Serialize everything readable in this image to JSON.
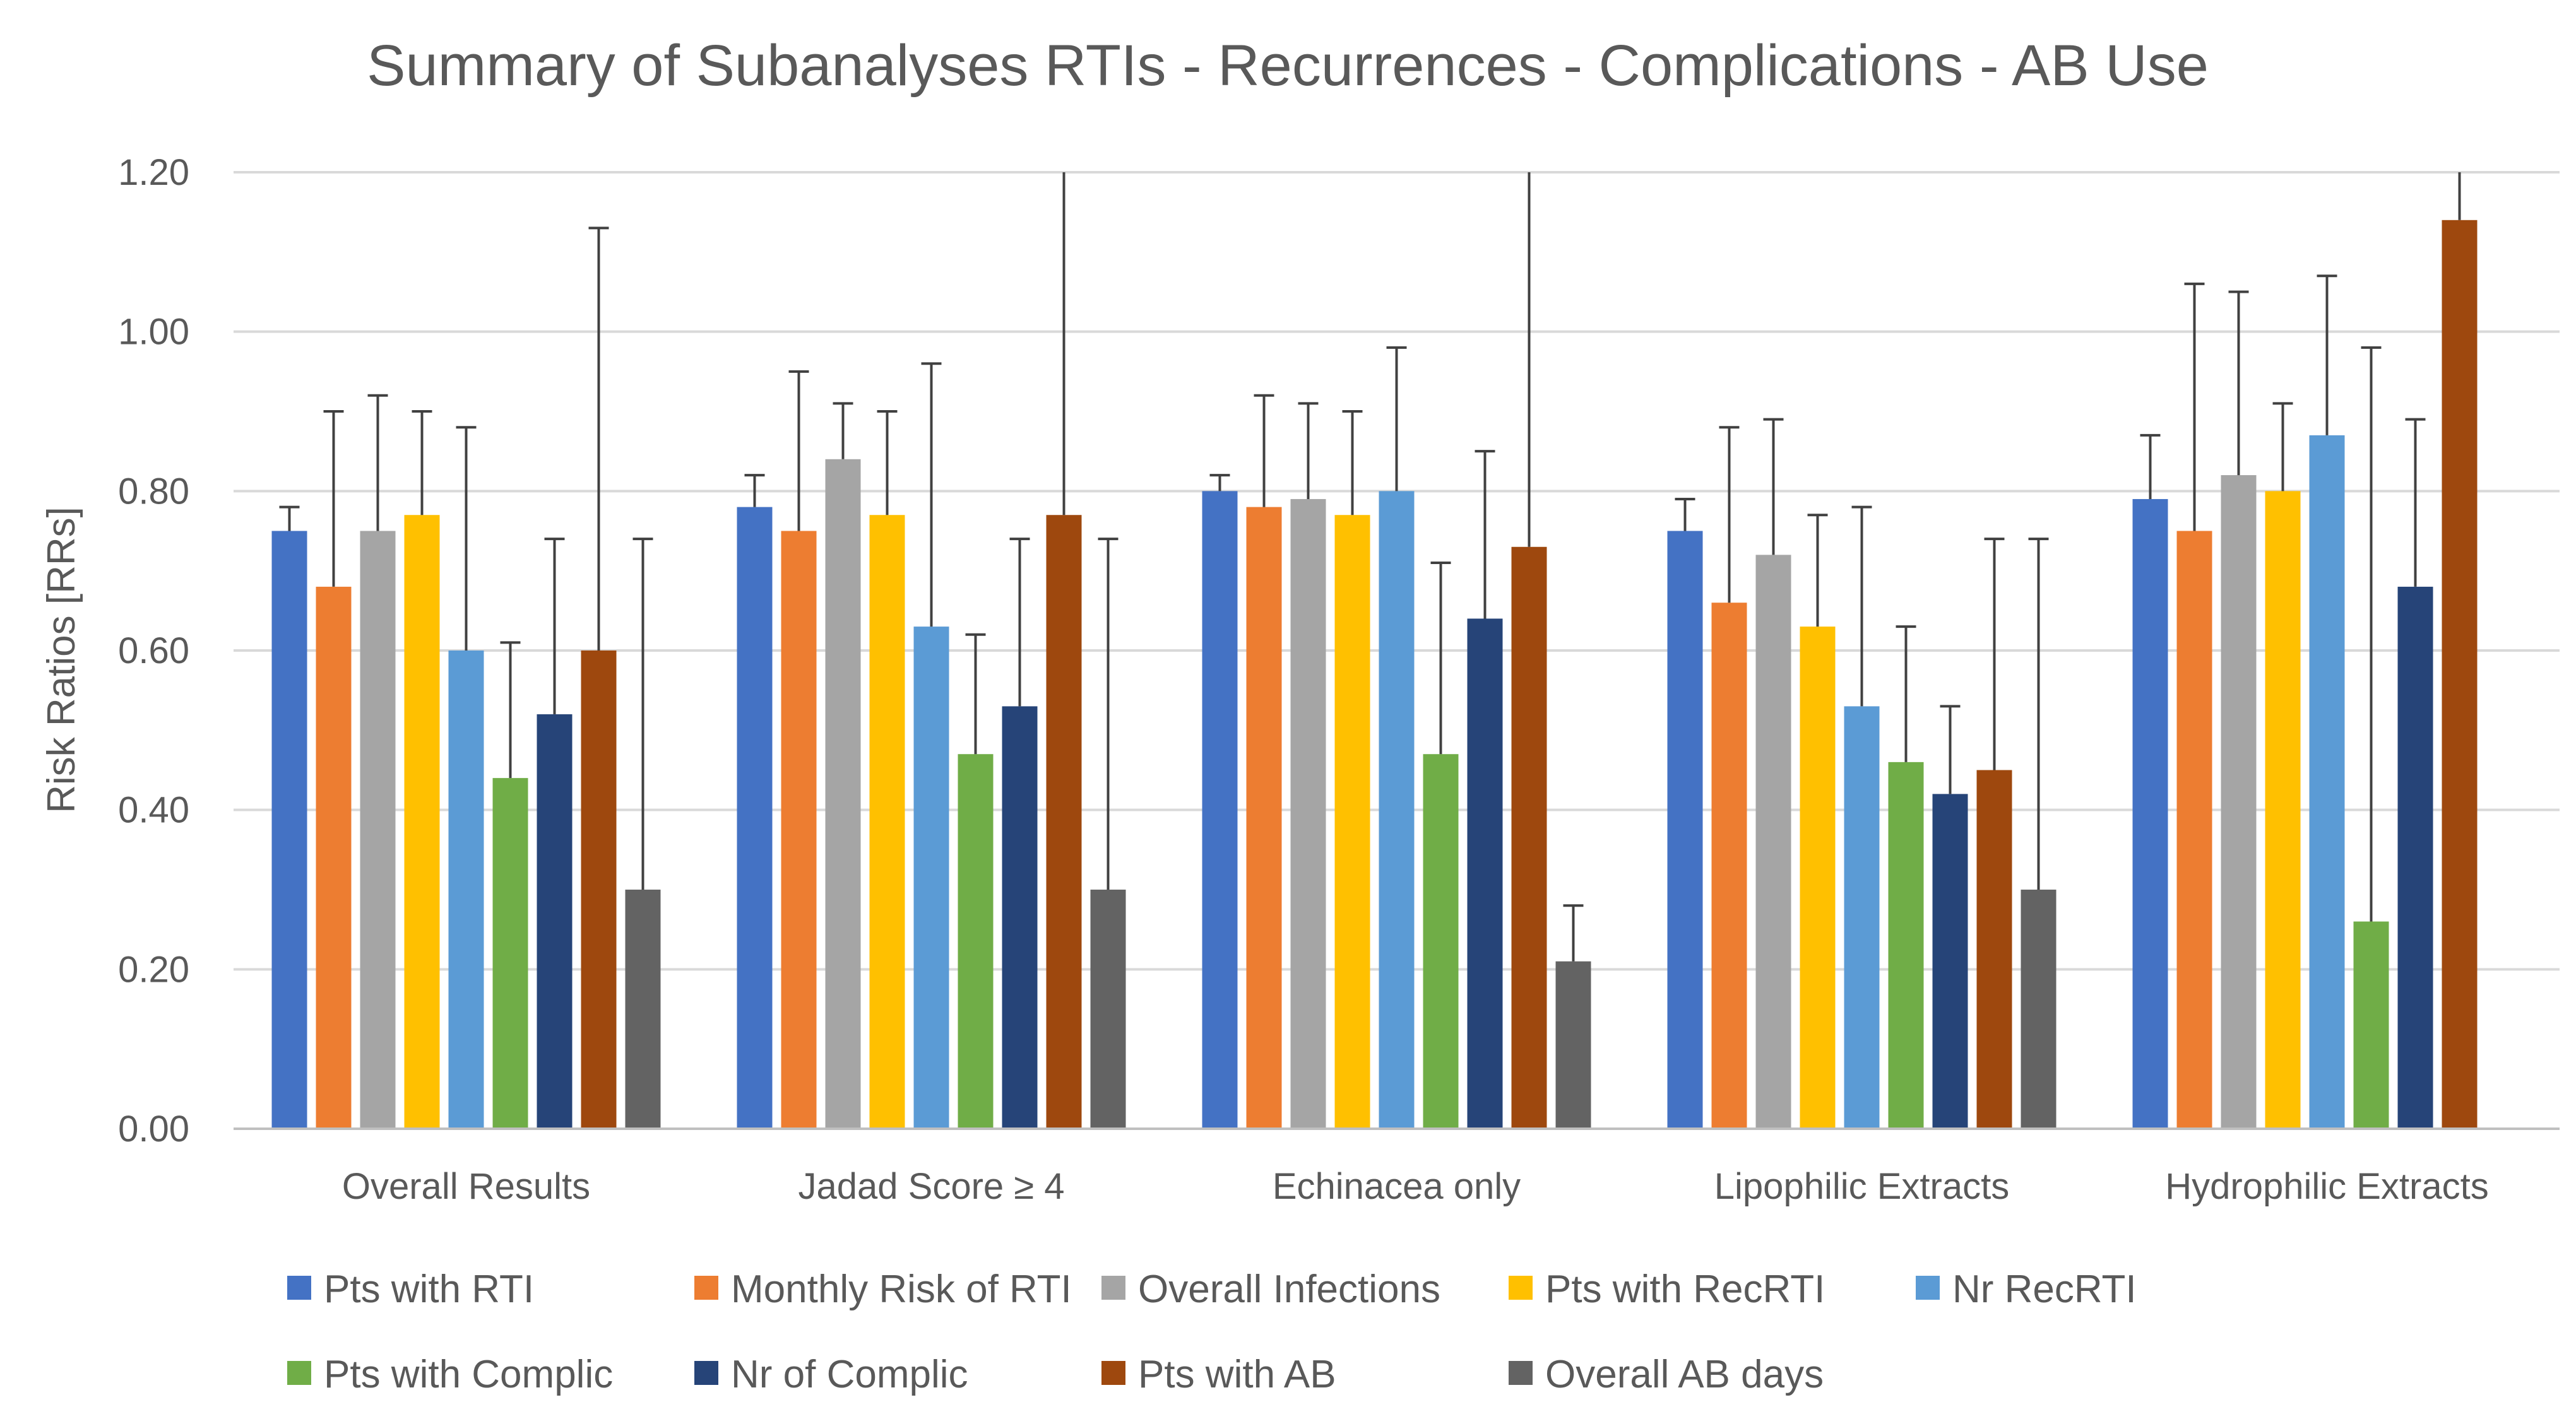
{
  "chart_data": {
    "type": "bar",
    "title": "Summary of Subanalyses RTIs - Recurrences - Complications - AB Use",
    "xlabel": "",
    "ylabel": "Risk Ratios [RRs]",
    "ylim": [
      0,
      1.2
    ],
    "yticks": [
      "0.00",
      "0.20",
      "0.40",
      "0.60",
      "0.80",
      "1.00",
      "1.20"
    ],
    "ytick_values": [
      0,
      0.2,
      0.4,
      0.6,
      0.8,
      1.0,
      1.2
    ],
    "grid": true,
    "legend_position": "bottom",
    "categories": [
      "Overall Results",
      "Jadad Score ≥ 4",
      "Echinacea only",
      "Lipophilic Extracts",
      "Hydrophilic Extracts"
    ],
    "series": [
      {
        "name": "Pts with RTI",
        "color": "#4472c4",
        "values": [
          0.75,
          0.78,
          0.8,
          0.75,
          0.79
        ],
        "err_upper": [
          0.78,
          0.82,
          0.82,
          0.79,
          0.87
        ]
      },
      {
        "name": "Monthly Risk of RTI",
        "color": "#ed7d31",
        "values": [
          0.68,
          0.75,
          0.78,
          0.66,
          0.75
        ],
        "err_upper": [
          0.9,
          0.95,
          0.92,
          0.88,
          1.06
        ]
      },
      {
        "name": "Overall Infections",
        "color": "#a5a5a5",
        "values": [
          0.75,
          0.84,
          0.79,
          0.72,
          0.82
        ],
        "err_upper": [
          0.92,
          0.91,
          0.91,
          0.89,
          1.05
        ]
      },
      {
        "name": "Pts with RecRTI",
        "color": "#ffc000",
        "values": [
          0.77,
          0.77,
          0.77,
          0.63,
          0.8
        ],
        "err_upper": [
          0.9,
          0.9,
          0.9,
          0.77,
          0.91
        ]
      },
      {
        "name": "Nr RecRTI",
        "color": "#5b9bd5",
        "values": [
          0.6,
          0.63,
          0.8,
          0.53,
          0.87
        ],
        "err_upper": [
          0.88,
          0.96,
          0.98,
          0.78,
          1.07
        ]
      },
      {
        "name": "Pts with Complic",
        "color": "#70ad47",
        "values": [
          0.44,
          0.47,
          0.47,
          0.46,
          0.26
        ],
        "err_upper": [
          0.61,
          0.62,
          0.71,
          0.63,
          0.98
        ]
      },
      {
        "name": "Nr of Complic",
        "color": "#264478",
        "values": [
          0.52,
          0.53,
          0.64,
          0.42,
          0.68
        ],
        "err_upper": [
          0.74,
          0.74,
          0.85,
          0.53,
          0.89
        ]
      },
      {
        "name": "Pts with AB",
        "color": "#9e480e",
        "values": [
          0.6,
          0.77,
          0.73,
          0.45,
          1.14
        ],
        "err_upper": [
          1.13,
          1.2,
          1.2,
          0.74,
          1.2
        ]
      },
      {
        "name": "Overall AB days",
        "color": "#636363",
        "values": [
          0.3,
          0.3,
          0.21,
          0.3,
          null
        ],
        "err_upper": [
          0.74,
          0.74,
          0.28,
          0.74,
          null
        ]
      }
    ]
  }
}
